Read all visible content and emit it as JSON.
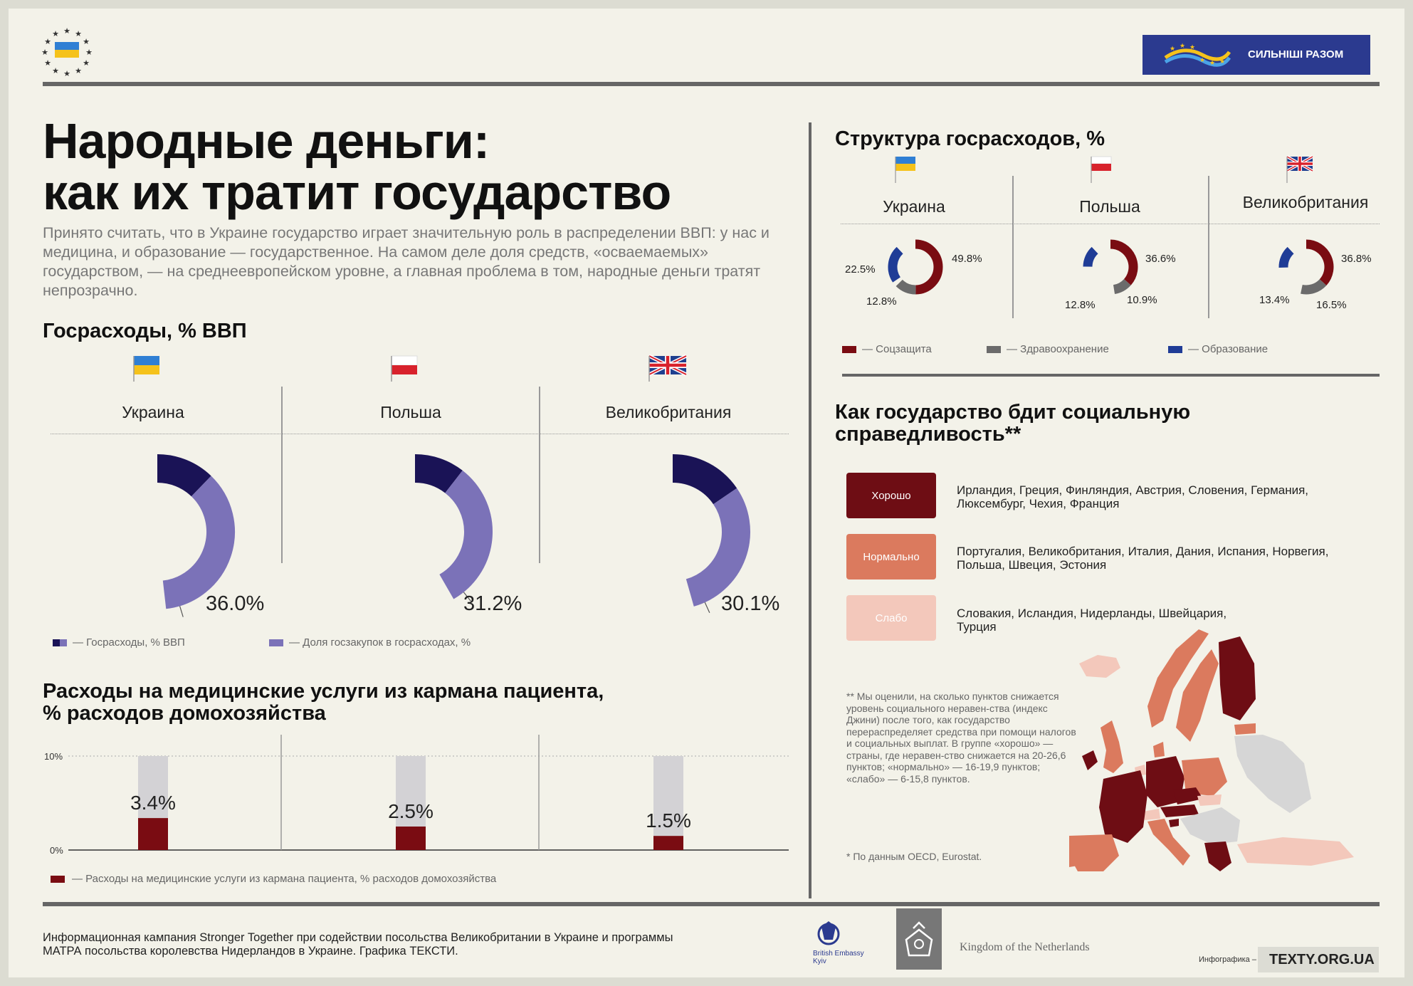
{
  "header": {
    "campaign_badge": "СИЛЬНІШІ РАЗОМ",
    "title_line1": "Народные деньги:",
    "title_line2": "как их тратит государство",
    "intro": "Принято считать, что в Украине государство играет значительную роль в распределении ВВП: у нас и медицина, и образование — государственное. На самом деле доля средств, «осваемаемых» государством, — на среднеевропейском уровне, а главная проблема в том, народные деньги тратят непрозрачно."
  },
  "countries": [
    "Украина",
    "Польша",
    "Великобритания"
  ],
  "colors": {
    "navy": "#1a1356",
    "lavender": "#7b72b8",
    "light_gray": "#d3d2d5",
    "socpro": "#7a0c12",
    "health": "#6b6b6b",
    "education": "#1f3c96",
    "good": "#6e0d14",
    "normal": "#db7a5e",
    "weak": "#f3c8bb"
  },
  "chart_data": [
    {
      "type": "pie",
      "title": "Госрасходы, % ВВП",
      "categories": [
        "Украина",
        "Польша",
        "Великобритания"
      ],
      "series": [
        {
          "name": "Госрасходы, % ВВП",
          "values": [
            null,
            null,
            null
          ]
        },
        {
          "name": "Доля госзакупок в госрасходах, %",
          "values": [
            36.0,
            31.2,
            30.1
          ]
        }
      ],
      "value_labels": [
        "36.0%",
        "31.2%",
        "30.1%"
      ],
      "legend": [
        "— Госрасходы, % ВВП",
        "— Доля госзакупок в госрасходах, %"
      ]
    },
    {
      "type": "pie",
      "title": "Структура госрасходов, %",
      "categories": [
        "Украина",
        "Польша",
        "Великобритания"
      ],
      "series": [
        {
          "name": "Соцзащита",
          "values": [
            49.8,
            36.6,
            36.8
          ]
        },
        {
          "name": "Здравоохранение",
          "values": [
            12.8,
            10.9,
            16.5
          ]
        },
        {
          "name": "Образование",
          "values": [
            22.5,
            12.8,
            13.4
          ]
        }
      ],
      "labels": {
        "ua": {
          "soc": "49.8%",
          "health": "12.8%",
          "edu": "22.5%"
        },
        "pl": {
          "soc": "36.6%",
          "health": "10.9%",
          "edu": "12.8%"
        },
        "gb": {
          "soc": "36.8%",
          "health": "16.5%",
          "edu": "13.4%"
        }
      },
      "legend": [
        "— Соцзащита",
        "— Здравоохранение",
        "— Образование"
      ]
    },
    {
      "type": "bar",
      "title": "Расходы на медицинские услуги из кармана пациента, % расходов домохозяйства",
      "title_line1": "Расходы на медицинские услуги из кармана пациента,",
      "title_line2": "% расходов домохозяйства",
      "categories": [
        "Украина",
        "Польша",
        "Великобритания"
      ],
      "values": [
        3.4,
        2.5,
        1.5
      ],
      "value_labels": [
        "3.4%",
        "2.5%",
        "1.5%"
      ],
      "ylim": [
        0,
        10
      ],
      "yticks": [
        "10%",
        "0%"
      ],
      "legend": "— Расходы на медицинские услуги из кармана пациента, % расходов домохозяйства"
    }
  ],
  "social": {
    "title_line1": "Как государство бдит социальную",
    "title_line2": "справедливость**",
    "ratings": [
      {
        "label": "Хорошо",
        "countries": "Ирландия, Греция, Финляндия, Австрия, Словения, Германия, Люксембург, Чехия, Франция"
      },
      {
        "label": "Нормально",
        "countries": "Португалия, Великобритания, Италия, Дания, Испания, Норвегия, Польша, Швеция, Эстония"
      },
      {
        "label": "Слабо",
        "countries": "Словакия, Исландия, Нидерланды, Швейцария, Турция"
      }
    ],
    "note": "** Мы оценили, на сколько пунктов снижается уровень социального неравен-ства (индекс Джини) после того, как государство перераспределяет средства при помощи налогов и социальных выплат. В группе «хорошо» — страны, где неравен-ство снижается на 20-26,6 пунктов; «нормально» — 16-19,9 пунктов; «слабо» — 6-15,8 пунктов.",
    "source": "* По данным OECD, Eurostat."
  },
  "footer": {
    "text": "Информационная кампания Stronger Together при содействии посольства Великобритании в Украине и программы МАТРА посольства королевства Нидерландов в Украине. Графика ТЕКСТИ.",
    "embassy": "British Embassy Kyiv",
    "netherlands": "Kingdom of the Netherlands",
    "infographic": "Инфографика –",
    "texty": "TEXTY.ORG.UA"
  }
}
